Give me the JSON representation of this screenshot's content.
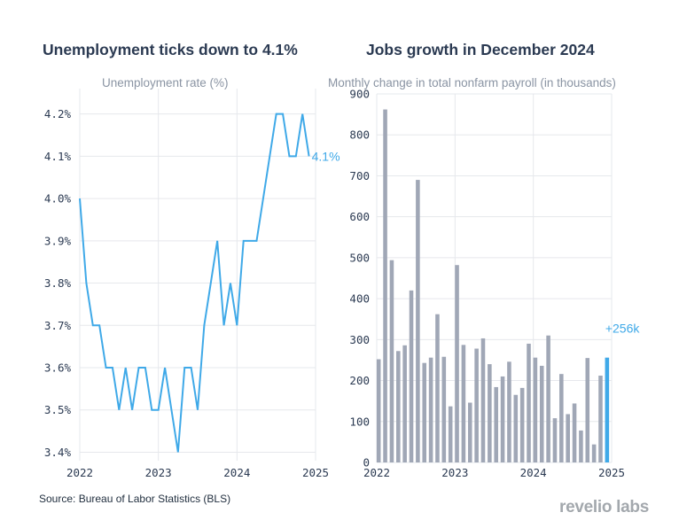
{
  "chart_data": [
    {
      "type": "line",
      "title": "Unemployment ticks down to 4.1%",
      "subtitle": "Unemployment rate (%)",
      "color": "#3fa9e8",
      "x_ticks": [
        "2022",
        "2023",
        "2024",
        "2025"
      ],
      "y_ticks": [
        "3.4%",
        "3.5%",
        "3.6%",
        "3.7%",
        "3.8%",
        "3.9%",
        "4.0%",
        "4.1%",
        "4.2%"
      ],
      "ylim": [
        3.38,
        4.26
      ],
      "xlim": [
        2022,
        2025
      ],
      "end_label": "4.1%",
      "series": [
        {
          "name": "Unemployment rate",
          "start": "2022-01",
          "values": [
            4.0,
            3.8,
            3.7,
            3.7,
            3.6,
            3.6,
            3.5,
            3.6,
            3.5,
            3.6,
            3.6,
            3.5,
            3.5,
            3.6,
            3.5,
            3.4,
            3.6,
            3.6,
            3.5,
            3.7,
            3.8,
            3.9,
            3.7,
            3.8,
            3.7,
            3.9,
            3.9,
            3.9,
            4.0,
            4.1,
            4.2,
            4.2,
            4.1,
            4.1,
            4.2,
            4.1
          ]
        }
      ]
    },
    {
      "type": "bar",
      "title": "Jobs growth in December 2024",
      "subtitle": "Monthly change in total nonfarm payroll (in thousands)",
      "color": "#a0a7b6",
      "highlight_color": "#3fa9e8",
      "x_ticks": [
        "2022",
        "2023",
        "2024",
        "2025"
      ],
      "y_ticks": [
        "0",
        "100",
        "200",
        "300",
        "400",
        "500",
        "600",
        "700",
        "800",
        "900"
      ],
      "ylim": [
        0,
        900
      ],
      "xlim": [
        2022,
        2025
      ],
      "end_label": "+256k",
      "series": [
        {
          "name": "Monthly change in nonfarm payroll",
          "start": "2022-01",
          "values": [
            252,
            862,
            494,
            272,
            286,
            420,
            690,
            243,
            256,
            362,
            258,
            137,
            482,
            287,
            146,
            278,
            303,
            240,
            184,
            210,
            246,
            165,
            182,
            290,
            256,
            236,
            310,
            108,
            216,
            118,
            144,
            78,
            255,
            44,
            212,
            256
          ]
        }
      ]
    }
  ],
  "source": "Source: Bureau of Labor Statistics (BLS)",
  "logo": "revelio labs"
}
